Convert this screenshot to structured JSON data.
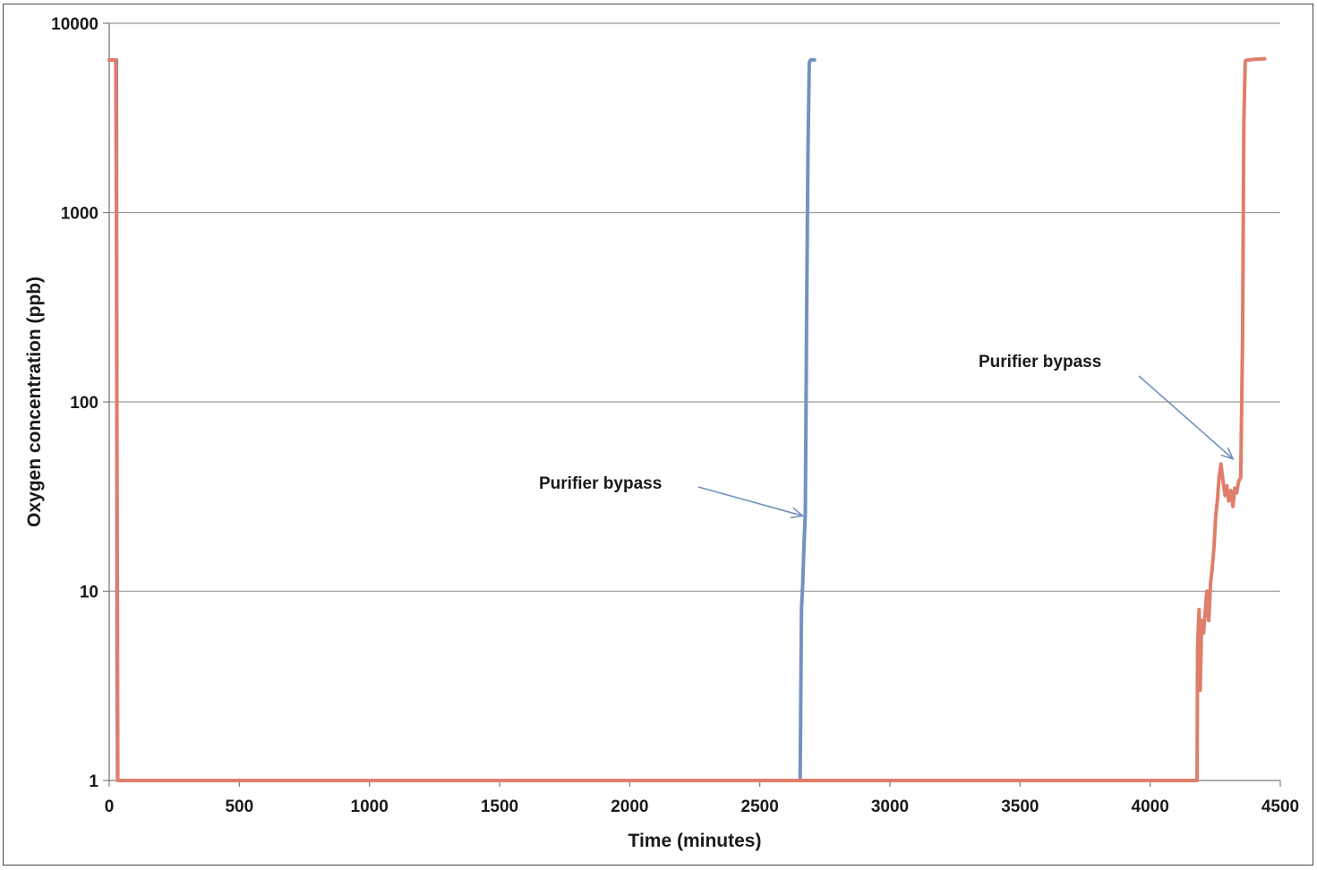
{
  "chart_data": {
    "type": "line",
    "title": "",
    "xlabel": "Time (minutes)",
    "ylabel": "Oxygen concentration (ppb)",
    "xlim": [
      0,
      4500
    ],
    "ylim": [
      1,
      10000
    ],
    "yscale": "log",
    "grid": "horizontal",
    "legend": "none",
    "x_ticks": [
      0,
      500,
      1000,
      1500,
      2000,
      2500,
      3000,
      3500,
      4000,
      4500
    ],
    "x_tick_labels": [
      "0",
      "500",
      "1000",
      "1500",
      "2000",
      "2500",
      "3000",
      "3500",
      "4000",
      "4500"
    ],
    "y_ticks": [
      1,
      10,
      100,
      1000,
      10000
    ],
    "y_tick_labels": [
      "1",
      "10",
      "100",
      "1000",
      "10000"
    ],
    "series": [
      {
        "color": "#7392c0",
        "x": [
          0,
          28,
          30,
          32,
          2650,
          2655,
          2660,
          2665,
          2670,
          2675,
          2680,
          2685,
          2690,
          2695,
          2710
        ],
        "y": [
          6400,
          6400,
          4,
          1,
          1,
          1,
          8,
          11,
          18,
          26,
          300,
          2000,
          6200,
          6400,
          6400
        ]
      },
      {
        "color": "#e07e6b",
        "x": [
          0,
          25,
          28,
          33,
          36,
          4175,
          4180,
          4182,
          4188,
          4192,
          4198,
          4205,
          4212,
          4218,
          4225,
          4232,
          4238,
          4245,
          4252,
          4258,
          4265,
          4272,
          4280,
          4288,
          4295,
          4302,
          4310,
          4318,
          4325,
          4332,
          4340,
          4348,
          4355,
          4360,
          4365,
          4372,
          4380,
          4400,
          4440
        ],
        "y": [
          6400,
          6400,
          700,
          1,
          1,
          1,
          1,
          5,
          8,
          3,
          7,
          6,
          8,
          10,
          7,
          11,
          13,
          17,
          25,
          30,
          40,
          47,
          38,
          32,
          36,
          30,
          34,
          28,
          35,
          33,
          38,
          40,
          220,
          3000,
          6300,
          6400,
          6400,
          6450,
          6500
        ]
      }
    ],
    "annotations": [
      {
        "text": "Purifier bypass",
        "target": [
          2665,
          25
        ]
      },
      {
        "text": "Purifier bypass",
        "target": [
          4318,
          50
        ]
      }
    ]
  }
}
